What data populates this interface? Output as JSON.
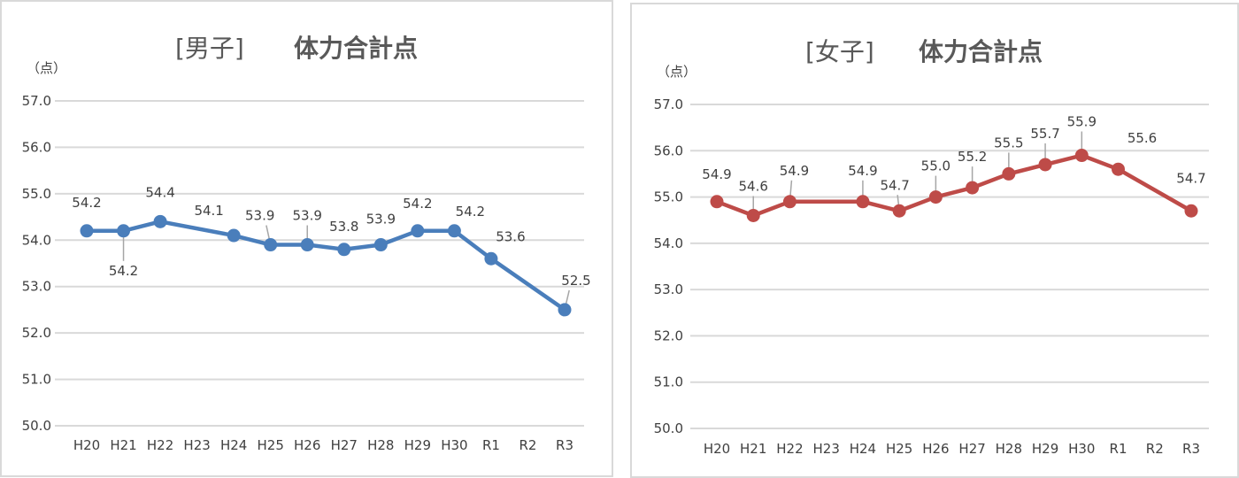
{
  "chart_data": [
    {
      "type": "line",
      "title_prefix": "[男子]",
      "title": "体力合計点",
      "ylabel": "（点）",
      "ylim": [
        50.0,
        57.0
      ],
      "yticks": [
        "50.0",
        "51.0",
        "52.0",
        "53.0",
        "54.0",
        "55.0",
        "56.0",
        "57.0"
      ],
      "grid": true,
      "categories": [
        "H20",
        "H21",
        "H22",
        "H23",
        "H24",
        "H25",
        "H26",
        "H27",
        "H28",
        "H29",
        "H30",
        "R1",
        "R2",
        "R3"
      ],
      "series": [
        {
          "values": [
            54.2,
            54.2,
            54.4,
            null,
            54.1,
            53.9,
            53.9,
            53.8,
            53.9,
            54.2,
            54.2,
            53.6,
            null,
            52.5
          ],
          "color": "#4a7ebb"
        }
      ]
    },
    {
      "type": "line",
      "title_prefix": "[女子]",
      "title": "体力合計点",
      "ylabel": "（点）",
      "ylim": [
        50.0,
        57.0
      ],
      "yticks": [
        "50.0",
        "51.0",
        "52.0",
        "53.0",
        "54.0",
        "55.0",
        "56.0",
        "57.0"
      ],
      "grid": true,
      "categories": [
        "H20",
        "H21",
        "H22",
        "H23",
        "H24",
        "H25",
        "H26",
        "H27",
        "H28",
        "H29",
        "H30",
        "R1",
        "R2",
        "R3"
      ],
      "series": [
        {
          "values": [
            54.9,
            54.6,
            54.9,
            null,
            54.9,
            54.7,
            55.0,
            55.2,
            55.5,
            55.7,
            55.9,
            55.6,
            null,
            54.7
          ],
          "color": "#be4b48"
        }
      ]
    }
  ]
}
